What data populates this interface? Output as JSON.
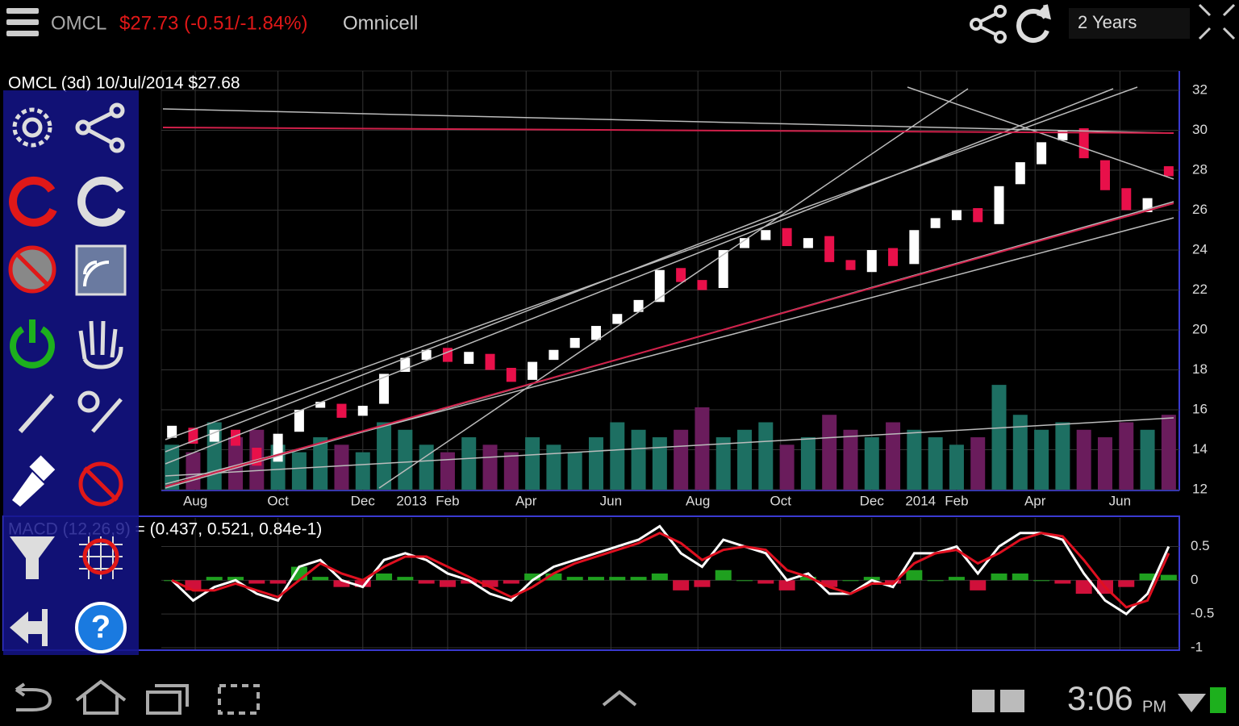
{
  "header": {
    "symbol": "OMCL",
    "quote": "$27.73 (-0.51/-1.84%)",
    "name": "Omnicell",
    "range": "2 Years"
  },
  "chart_data": [
    {
      "type": "candlestick",
      "title": "OMCL (3d) 10/Jul/2014 $27.68",
      "x": [
        0.5,
        1.5,
        2.5,
        3.5,
        4.5,
        5.5,
        6.5,
        7.5,
        8.5,
        9.5,
        10.5,
        11.5,
        12.5,
        13.5,
        14.5,
        15.5,
        16.5,
        17.5,
        18.5,
        19.5,
        20.5,
        21.5,
        22.5,
        23.5,
        24.5,
        25.5,
        26.5,
        27.5,
        28.5,
        29.5,
        30.5,
        31.5,
        32.5,
        33.5,
        34.5,
        35.5,
        36.5,
        37.5,
        38.5,
        39.5,
        40.5,
        41.5,
        42.5,
        43.5,
        44.5,
        45.5,
        46.5,
        47.5
      ],
      "open": [
        14.6,
        15.1,
        14.4,
        15.0,
        14.1,
        13.4,
        14.9,
        16.1,
        16.3,
        15.7,
        16.3,
        17.9,
        18.5,
        19.1,
        18.3,
        18.8,
        18.1,
        17.5,
        18.5,
        19.1,
        19.5,
        20.3,
        20.9,
        21.4,
        23.1,
        22.5,
        22.1,
        24.1,
        24.5,
        25.1,
        24.1,
        24.7,
        23.5,
        22.9,
        24.1,
        23.3,
        25.1,
        25.5,
        26.1,
        25.3,
        27.3,
        28.3,
        29.5,
        30.1,
        28.5,
        27.1,
        25.9,
        28.2
      ],
      "close": [
        15.2,
        14.3,
        15.0,
        14.2,
        13.2,
        14.8,
        16.0,
        16.4,
        15.6,
        16.2,
        17.8,
        18.6,
        19.0,
        18.4,
        18.9,
        18.0,
        17.4,
        18.4,
        19.0,
        19.6,
        20.2,
        20.8,
        21.5,
        23.0,
        22.4,
        22.0,
        24.0,
        24.6,
        25.0,
        24.2,
        24.6,
        23.4,
        23.0,
        24.0,
        23.2,
        25.0,
        25.6,
        26.0,
        25.4,
        27.2,
        28.4,
        29.4,
        30.0,
        28.6,
        27.0,
        26.0,
        26.6,
        27.7
      ],
      "volume": [
        600000,
        500000,
        900000,
        700000,
        800000,
        600000,
        500000,
        700000,
        600000,
        500000,
        900000,
        800000,
        600000,
        500000,
        700000,
        600000,
        500000,
        700000,
        600000,
        500000,
        700000,
        900000,
        800000,
        700000,
        800000,
        1100000,
        700000,
        800000,
        900000,
        600000,
        700000,
        1000000,
        800000,
        700000,
        900000,
        800000,
        700000,
        600000,
        700000,
        1400000,
        1000000,
        800000,
        900000,
        800000,
        700000,
        900000,
        800000,
        1000000
      ],
      "up_color": "#ffffff",
      "down_color": "#e8104a",
      "volume_up_color": "#1d6f62",
      "volume_down_color": "#6a1c5c",
      "xlim": [
        0,
        48
      ],
      "ylim": [
        12,
        32
      ],
      "vlim": [
        0,
        1800000
      ],
      "yticks": [
        12,
        14,
        16,
        18,
        20,
        22,
        24,
        26,
        28,
        30,
        32
      ],
      "xticks": [
        {
          "value": 1.6,
          "label": "Aug"
        },
        {
          "value": 5.5,
          "label": "Oct"
        },
        {
          "value": 9.5,
          "label": "Dec"
        },
        {
          "value": 11.8,
          "label": "2013"
        },
        {
          "value": 13.5,
          "label": "Feb"
        },
        {
          "value": 17.2,
          "label": "Apr"
        },
        {
          "value": 21.2,
          "label": "Jun"
        },
        {
          "value": 25.3,
          "label": "Aug"
        },
        {
          "value": 29.2,
          "label": "Oct"
        },
        {
          "value": 33.5,
          "label": "Dec"
        },
        {
          "value": 35.8,
          "label": "2014"
        },
        {
          "value": 37.5,
          "label": "Feb"
        },
        {
          "value": 41.2,
          "label": "Apr"
        },
        {
          "value": 45.2,
          "label": "Jun"
        }
      ],
      "grid": true
    },
    {
      "type": "line",
      "title": "MACD (12,26,9) = (0.437, 0.521, 0.84e-1)",
      "ylim": [
        -1,
        0.9
      ],
      "yticks": [
        0.5,
        0,
        -0.5,
        -1
      ],
      "series": [
        {
          "color": "#ffffff",
          "values": [
            0.0,
            -0.3,
            -0.1,
            0.0,
            -0.2,
            -0.3,
            0.2,
            0.3,
            0.0,
            -0.1,
            0.3,
            0.4,
            0.3,
            0.1,
            0.0,
            -0.2,
            -0.3,
            0.0,
            0.2,
            0.3,
            0.4,
            0.5,
            0.6,
            0.8,
            0.4,
            0.2,
            0.6,
            0.5,
            0.4,
            0.0,
            0.1,
            -0.2,
            -0.2,
            0.0,
            -0.1,
            0.4,
            0.4,
            0.5,
            0.1,
            0.5,
            0.7,
            0.7,
            0.6,
            0.1,
            -0.3,
            -0.5,
            -0.2,
            0.5
          ]
        },
        {
          "color": "#e01020",
          "values": [
            0.0,
            -0.15,
            -0.15,
            -0.05,
            -0.15,
            -0.25,
            0.0,
            0.25,
            0.1,
            0.0,
            0.2,
            0.35,
            0.35,
            0.2,
            0.05,
            -0.1,
            -0.25,
            -0.1,
            0.1,
            0.25,
            0.35,
            0.45,
            0.55,
            0.7,
            0.55,
            0.3,
            0.45,
            0.5,
            0.45,
            0.15,
            0.05,
            -0.1,
            -0.2,
            -0.05,
            -0.05,
            0.25,
            0.4,
            0.45,
            0.25,
            0.4,
            0.6,
            0.7,
            0.65,
            0.3,
            -0.1,
            -0.4,
            -0.3,
            0.4
          ]
        }
      ],
      "histogram": {
        "up_color": "#1fa01f",
        "down_color": "#d0103a",
        "values": [
          0,
          -0.15,
          0.05,
          0.05,
          -0.05,
          -0.05,
          0.2,
          0.05,
          -0.1,
          -0.1,
          0.1,
          0.05,
          -0.05,
          -0.1,
          -0.05,
          -0.1,
          -0.05,
          0.1,
          0.1,
          0.05,
          0.05,
          0.05,
          0.05,
          0.1,
          -0.15,
          -0.1,
          0.15,
          0,
          -0.05,
          -0.15,
          0.05,
          -0.1,
          0,
          0.05,
          -0.05,
          0.15,
          0,
          0.05,
          -0.15,
          0.1,
          0.1,
          0,
          -0.05,
          -0.2,
          -0.2,
          -0.1,
          0.1,
          0.08
        ]
      },
      "grid": true
    }
  ],
  "status_bar": {
    "time": "3:06",
    "ampm": "PM"
  }
}
